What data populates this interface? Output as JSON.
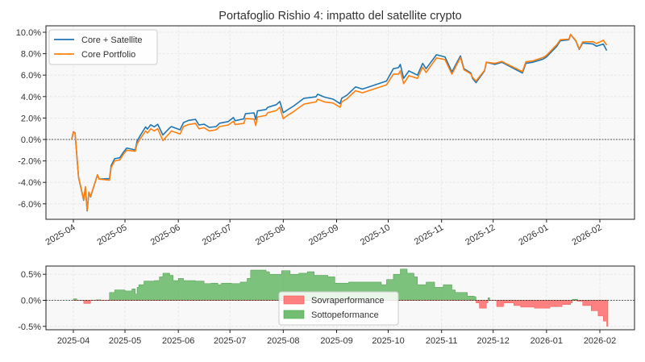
{
  "chart_data": [
    {
      "type": "line",
      "title": "Portafoglio Rishio 4: impatto del satellite crypto",
      "xlabel": "",
      "ylabel": "",
      "ylim": [
        -7.0,
        10.5
      ],
      "yticks": [
        "10.0%",
        "8.0%",
        "6.0%",
        "4.0%",
        "2.0%",
        "0.0%",
        "-2.0%",
        "-4.0%",
        "-6.0%"
      ],
      "ytick_values": [
        10,
        8,
        6,
        4,
        2,
        0,
        -2,
        -4,
        -6
      ],
      "xticks": [
        "2025-04",
        "2025-05",
        "2025-06",
        "2025-07",
        "2025-08",
        "2025-09",
        "2025-10",
        "2025-11",
        "2025-12",
        "2026-01",
        "2026-02"
      ],
      "grid": true,
      "legend_position": "top-left",
      "reference_line": 0,
      "series": [
        {
          "name": "Core + Satellite",
          "color": "#1f77b4"
        },
        {
          "name": "Core Portfolio",
          "color": "#ff7f0e"
        }
      ],
      "dates": [
        "2025-03-31",
        "2025-04-01",
        "2025-04-02",
        "2025-04-04",
        "2025-04-07",
        "2025-04-08",
        "2025-04-09",
        "2025-04-10",
        "2025-04-11",
        "2025-04-15",
        "2025-04-16",
        "2025-04-22",
        "2025-04-23",
        "2025-04-25",
        "2025-04-28",
        "2025-04-30",
        "2025-05-02",
        "2025-05-07",
        "2025-05-08",
        "2025-05-10",
        "2025-05-13",
        "2025-05-14",
        "2025-05-16",
        "2025-05-18",
        "2025-05-20",
        "2025-05-23",
        "2025-05-27",
        "2025-05-28",
        "2025-06-02",
        "2025-06-04",
        "2025-06-07",
        "2025-06-11",
        "2025-06-13",
        "2025-06-16",
        "2025-06-19",
        "2025-06-23",
        "2025-06-25",
        "2025-06-30",
        "2025-07-03",
        "2025-07-04",
        "2025-07-09",
        "2025-07-10",
        "2025-07-15",
        "2025-07-16",
        "2025-07-17",
        "2025-07-22",
        "2025-07-23",
        "2025-07-28",
        "2025-07-30",
        "2025-08-01",
        "2025-08-04",
        "2025-08-07",
        "2025-08-13",
        "2025-08-20",
        "2025-08-21",
        "2025-08-25",
        "2025-08-30",
        "2025-09-03",
        "2025-09-04",
        "2025-09-07",
        "2025-09-12",
        "2025-09-16",
        "2025-09-30",
        "2025-10-04",
        "2025-10-07",
        "2025-10-08",
        "2025-10-10",
        "2025-10-13",
        "2025-10-18",
        "2025-10-21",
        "2025-10-23",
        "2025-10-29",
        "2025-11-03",
        "2025-11-07",
        "2025-11-12",
        "2025-11-14",
        "2025-11-18",
        "2025-11-19",
        "2025-11-21",
        "2025-11-26",
        "2025-11-27",
        "2025-12-02",
        "2025-12-06",
        "2025-12-12",
        "2025-12-18",
        "2025-12-20",
        "2025-12-24",
        "2025-12-30",
        "2026-01-01",
        "2026-01-07",
        "2026-01-09",
        "2026-01-14",
        "2026-01-15",
        "2026-01-18",
        "2026-01-20",
        "2026-01-22",
        "2026-01-28",
        "2026-01-30",
        "2026-02-03",
        "2026-02-05"
      ],
      "core_satellite": [
        0.0,
        0.72,
        0.62,
        -3.52,
        -5.66,
        -4.46,
        -6.66,
        -4.96,
        -5.36,
        -3.29,
        -3.69,
        -3.65,
        -2.42,
        -1.8,
        -1.7,
        -1.2,
        -0.8,
        -0.98,
        -0.15,
        0.4,
        1.17,
        0.97,
        1.37,
        1.18,
        1.42,
        0.42,
        1.08,
        1.2,
        0.9,
        1.58,
        1.78,
        1.87,
        1.35,
        1.42,
        1.13,
        1.2,
        1.52,
        1.67,
        2.05,
        1.75,
        1.92,
        2.4,
        2.48,
        1.86,
        2.66,
        2.8,
        3.0,
        3.25,
        3.55,
        2.5,
        2.82,
        3.12,
        3.84,
        3.98,
        4.22,
        3.95,
        3.76,
        3.34,
        3.85,
        4.13,
        4.9,
        4.7,
        5.45,
        6.6,
        6.7,
        7.0,
        5.7,
        6.4,
        6.0,
        7.1,
        6.6,
        7.9,
        7.7,
        6.3,
        7.8,
        6.6,
        6.2,
        5.7,
        5.3,
        6.4,
        7.2,
        7.0,
        7.2,
        6.7,
        6.2,
        7.1,
        7.2,
        7.5,
        7.7,
        8.7,
        9.2,
        9.3,
        9.8,
        9.2,
        8.4,
        9.0,
        8.9,
        8.7,
        8.9,
        8.3
      ],
      "core": [
        0.0,
        0.7,
        0.6,
        -3.5,
        -5.6,
        -4.4,
        -6.6,
        -4.9,
        -5.3,
        -3.3,
        -3.7,
        -3.8,
        -2.6,
        -2.0,
        -1.9,
        -1.4,
        -1.0,
        -1.1,
        -0.4,
        0.1,
        0.8,
        0.6,
        1.0,
        0.8,
        1.0,
        -0.1,
        0.6,
        0.8,
        0.5,
        1.2,
        1.4,
        1.5,
        1.0,
        1.1,
        0.8,
        0.9,
        1.2,
        1.35,
        1.7,
        1.4,
        1.5,
        1.95,
        1.9,
        1.3,
        2.1,
        2.25,
        2.5,
        2.7,
        3.0,
        1.95,
        2.3,
        2.6,
        3.3,
        3.5,
        3.75,
        3.5,
        3.4,
        3.0,
        3.5,
        3.8,
        4.55,
        4.35,
        5.1,
        6.1,
        6.1,
        6.4,
        5.2,
        5.95,
        5.7,
        6.75,
        6.25,
        7.6,
        7.45,
        6.1,
        7.65,
        6.5,
        6.12,
        5.8,
        5.45,
        6.45,
        7.2,
        7.1,
        7.28,
        6.8,
        6.32,
        7.24,
        7.33,
        7.65,
        7.85,
        8.85,
        9.3,
        9.35,
        9.8,
        9.25,
        8.45,
        9.1,
        9.12,
        8.95,
        9.25,
        8.8
      ]
    },
    {
      "type": "area",
      "title": "",
      "ylim": [
        -0.56,
        0.66
      ],
      "yticks": [
        "0.5%",
        "0.0%",
        "-0.5%"
      ],
      "ytick_values": [
        0.5,
        0,
        -0.5
      ],
      "xticks": [
        "2025-04",
        "2025-05",
        "2025-06",
        "2025-07",
        "2025-08",
        "2025-09",
        "2025-10",
        "2025-11",
        "2025-12",
        "2026-01",
        "2026-02"
      ],
      "grid": true,
      "legend_position": "center",
      "reference_line": 0,
      "legend": [
        {
          "name": "Sovraperformance",
          "color": "#ff6b6b"
        },
        {
          "name": "Sottopeformance",
          "color": "#5cb35c"
        }
      ],
      "dates": [
        "2025-04-01",
        "2025-04-03",
        "2025-04-07",
        "2025-04-11",
        "2025-04-14",
        "2025-04-17",
        "2025-04-22",
        "2025-04-25",
        "2025-05-01",
        "2025-05-05",
        "2025-05-07",
        "2025-05-08",
        "2025-05-09",
        "2025-05-12",
        "2025-05-18",
        "2025-05-21",
        "2025-05-23",
        "2025-05-27",
        "2025-05-29",
        "2025-06-01",
        "2025-06-04",
        "2025-06-11",
        "2025-06-16",
        "2025-06-20",
        "2025-06-24",
        "2025-06-26",
        "2025-07-02",
        "2025-07-07",
        "2025-07-11",
        "2025-07-13",
        "2025-07-22",
        "2025-07-24",
        "2025-07-31",
        "2025-08-05",
        "2025-08-10",
        "2025-08-15",
        "2025-08-19",
        "2025-08-27",
        "2025-08-31",
        "2025-09-08",
        "2025-09-17",
        "2025-09-27",
        "2025-09-30",
        "2025-10-04",
        "2025-10-08",
        "2025-10-12",
        "2025-10-16",
        "2025-10-18",
        "2025-10-23",
        "2025-10-28",
        "2025-11-02",
        "2025-11-07",
        "2025-11-09",
        "2025-11-16",
        "2025-11-20",
        "2025-11-21",
        "2025-11-23",
        "2025-11-27",
        "2025-11-28",
        "2025-11-29",
        "2025-12-03",
        "2025-12-07",
        "2025-12-13",
        "2025-12-17",
        "2025-12-25",
        "2026-01-03",
        "2026-01-10",
        "2026-01-15",
        "2026-01-16",
        "2026-01-19",
        "2026-01-22",
        "2026-01-27",
        "2026-01-31",
        "2026-02-03",
        "2026-02-05"
      ],
      "values": [
        0.03,
        0,
        -0.06,
        0,
        0.01,
        0,
        0.15,
        0.2,
        0.18,
        0.22,
        0.12,
        0.25,
        0.3,
        0.37,
        0.38,
        0.45,
        0.52,
        0.48,
        0.38,
        0.42,
        0.38,
        0.37,
        0.32,
        0.33,
        0.3,
        0.33,
        0.32,
        0.35,
        0.42,
        0.58,
        0.55,
        0.5,
        0.57,
        0.5,
        0.52,
        0.55,
        0.48,
        0.45,
        0.33,
        0.35,
        0.35,
        0.3,
        0.4,
        0.5,
        0.6,
        0.52,
        0.45,
        0.3,
        0.35,
        0.25,
        0.3,
        0.2,
        0.15,
        0.08,
        0.07,
        -0.05,
        -0.15,
        -0.05,
        0.05,
        0,
        -0.12,
        -0.05,
        -0.1,
        -0.13,
        -0.15,
        -0.12,
        -0.08,
        -0.05,
        0.02,
        -0.02,
        -0.1,
        -0.2,
        -0.3,
        -0.4,
        -0.5
      ]
    }
  ]
}
